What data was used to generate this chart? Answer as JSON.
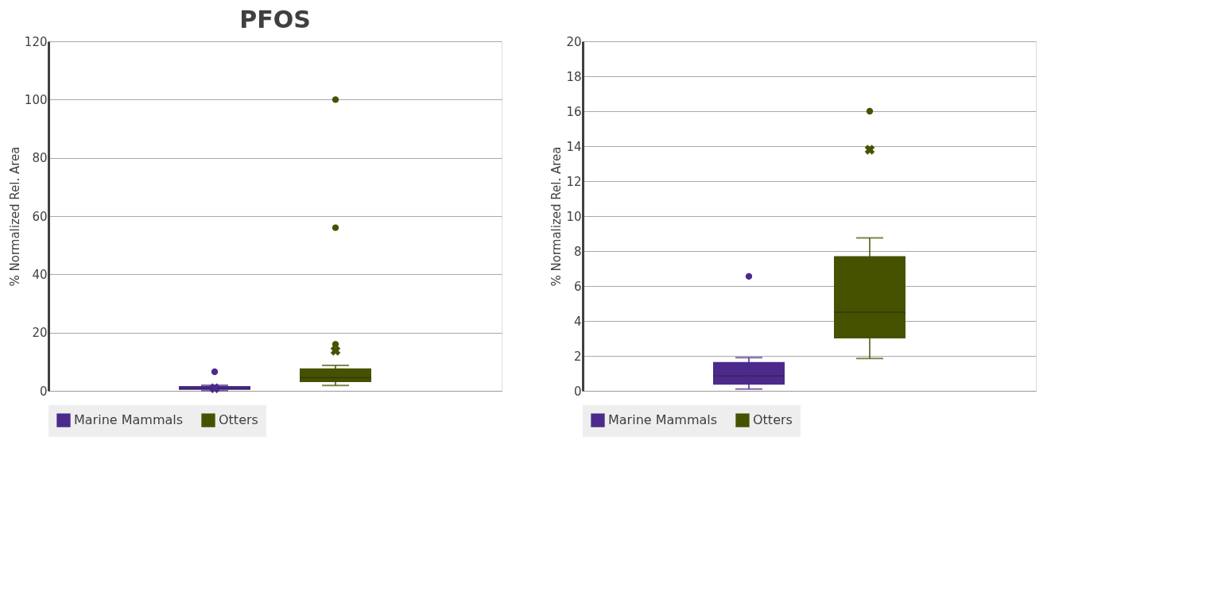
{
  "chart_data": [
    {
      "type": "box",
      "title": "PFOS",
      "ylabel": "% Normalized Rel. Area",
      "categories": [
        null
      ],
      "ylim": [
        0,
        120
      ],
      "yticks": [
        0,
        20,
        40,
        60,
        80,
        100,
        120
      ],
      "grid": "y",
      "legend": "bottom",
      "tick_labels": "y",
      "series": [
        {
          "name": "Marine Mammals",
          "color": "#4b2a8c",
          "boxes": [
            {
              "low": 0.1,
              "q1": 0.35,
              "median": 0.85,
              "q3": 1.65,
              "high": 1.9,
              "mean": 0.9,
              "outliers": [
                6.55
              ]
            }
          ]
        },
        {
          "name": "Otters",
          "color": "#465200",
          "boxes": [
            {
              "low": 1.85,
              "q1": 3.0,
              "median": 4.5,
              "q3": 7.7,
              "high": 8.75,
              "mean": 13.8,
              "outliers": [
                16,
                56,
                100
              ]
            }
          ]
        }
      ]
    },
    {
      "type": "box",
      "ylabel": "% Normalized Rel. Area",
      "categories": [
        null
      ],
      "ylim": [
        0,
        20
      ],
      "yticks": [
        0,
        2,
        4,
        6,
        8,
        10,
        12,
        14,
        16,
        18,
        20
      ],
      "grid": "y",
      "legend": "bottom",
      "tick_labels": "y",
      "series": [
        {
          "name": "Marine Mammals",
          "color": "#4b2a8c",
          "boxes": [
            {
              "low": 0.1,
              "q1": 0.35,
              "median": 0.85,
              "q3": 1.65,
              "high": 1.9,
              "outliers": [
                6.55
              ]
            }
          ]
        },
        {
          "name": "Otters",
          "color": "#465200",
          "boxes": [
            {
              "low": 1.85,
              "q1": 3.0,
              "median": 4.5,
              "q3": 7.7,
              "high": 8.75,
              "mean": 13.8,
              "outliers": [
                16
              ]
            }
          ]
        }
      ]
    }
  ]
}
